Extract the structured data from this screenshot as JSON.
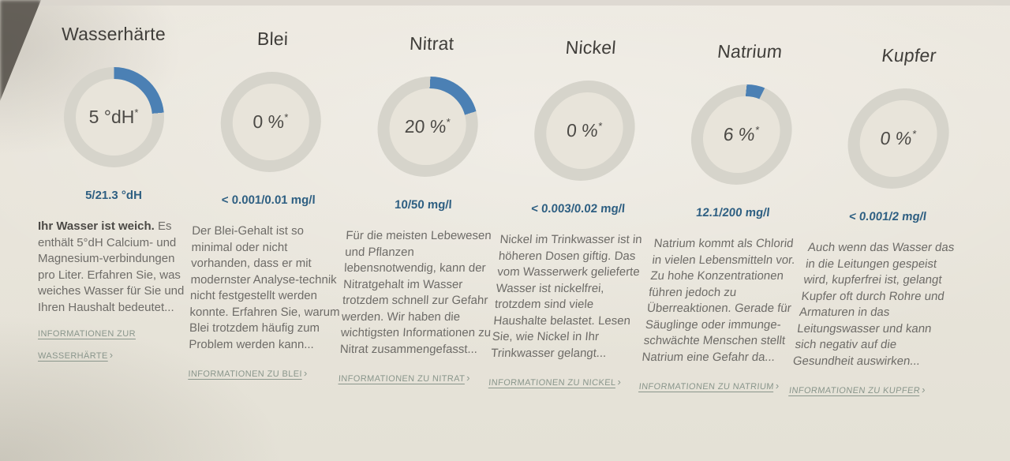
{
  "labels": {
    "asterisk": "*",
    "chevron": "›"
  },
  "colors": {
    "accent_blue": "#4b80b4",
    "ring_gray": "#d6d4cb",
    "ratio_text": "#2e5f82",
    "link_text": "#8a968c"
  },
  "chart_data": {
    "type": "donut-gauges",
    "gauges": [
      {
        "label": "Wasserhärte",
        "value": 5,
        "max": 21.3,
        "unit": "°dH",
        "percent_fill": 23.5
      },
      {
        "label": "Blei",
        "value": 0.001,
        "max": 0.01,
        "unit": "mg/l",
        "percent_fill": 0
      },
      {
        "label": "Nitrat",
        "value": 10,
        "max": 50,
        "unit": "mg/l",
        "percent_fill": 20
      },
      {
        "label": "Nickel",
        "value": 0.003,
        "max": 0.02,
        "unit": "mg/l",
        "percent_fill": 0
      },
      {
        "label": "Natrium",
        "value": 12.1,
        "max": 200,
        "unit": "mg/l",
        "percent_fill": 6
      },
      {
        "label": "Kupfer",
        "value": 0.001,
        "max": 2,
        "unit": "mg/l",
        "percent_fill": 0
      }
    ]
  },
  "cards": [
    {
      "title": "Wasserhärte",
      "center_value": "5 °dH",
      "percent_fill": 23.5,
      "ratio": "5/21.3 °dH",
      "intro_bold": "Ihr Wasser ist weich.",
      "description": " Es enthält 5°dH Calcium- und Magnesium-verbindungen pro Liter. Erfahren Sie, was weiches Wasser für Sie und Ihren Haushalt bedeutet...",
      "link": "INFORMATIONEN ZUR WASSERHÄRTE"
    },
    {
      "title": "Blei",
      "center_value": "0 %",
      "percent_fill": 0,
      "ratio": "< 0.001/0.01 mg/l",
      "intro_bold": "",
      "description": "Der Blei-Gehalt ist so minimal oder nicht vorhanden, dass er mit modernster Analyse-technik nicht festgestellt werden konnte. Erfahren Sie, warum Blei trotzdem häufig zum Problem werden kann...",
      "link": "INFORMATIONEN ZU BLEI"
    },
    {
      "title": "Nitrat",
      "center_value": "20 %",
      "percent_fill": 20,
      "ratio": "10/50 mg/l",
      "intro_bold": "",
      "description": "Für die meisten Lebewesen und Pflanzen lebensnotwendig, kann der Nitratgehalt im Wasser trotzdem schnell zur Gefahr werden. Wir haben die wichtigsten Informationen zu Nitrat zusammengefasst...",
      "link": "INFORMATIONEN ZU NITRAT"
    },
    {
      "title": "Nickel",
      "center_value": "0 %",
      "percent_fill": 0,
      "ratio": "< 0.003/0.02 mg/l",
      "intro_bold": "",
      "description": "Nickel im Trinkwasser ist in höheren Dosen giftig. Das vom Wasserwerk gelieferte Wasser ist nickelfrei, trotzdem sind viele Haushalte belastet. Lesen Sie, wie Nickel in Ihr Trinkwasser gelangt...",
      "link": "INFORMATIONEN ZU NICKEL"
    },
    {
      "title": "Natrium",
      "center_value": "6 %",
      "percent_fill": 6,
      "ratio": "12.1/200 mg/l",
      "intro_bold": "",
      "description": "Natrium kommt als Chlorid in vielen Lebensmitteln vor. Zu hohe Konzentrationen führen jedoch zu Überreaktionen. Gerade für Säuglinge oder immunge-schwächte Menschen stellt Natrium eine Gefahr da...",
      "link": "INFORMATIONEN ZU NATRIUM"
    },
    {
      "title": "Kupfer",
      "center_value": "0 %",
      "percent_fill": 0,
      "ratio": "< 0.001/2 mg/l",
      "intro_bold": "",
      "description": "Auch wenn das Wasser das in die Leitungen gespeist wird, kupferfrei ist, gelangt Kupfer oft durch Rohre und Armaturen in das Leitungswasser und kann sich negativ auf die Gesundheit auswirken...",
      "link": "INFORMATIONEN ZU KUPFER"
    }
  ]
}
